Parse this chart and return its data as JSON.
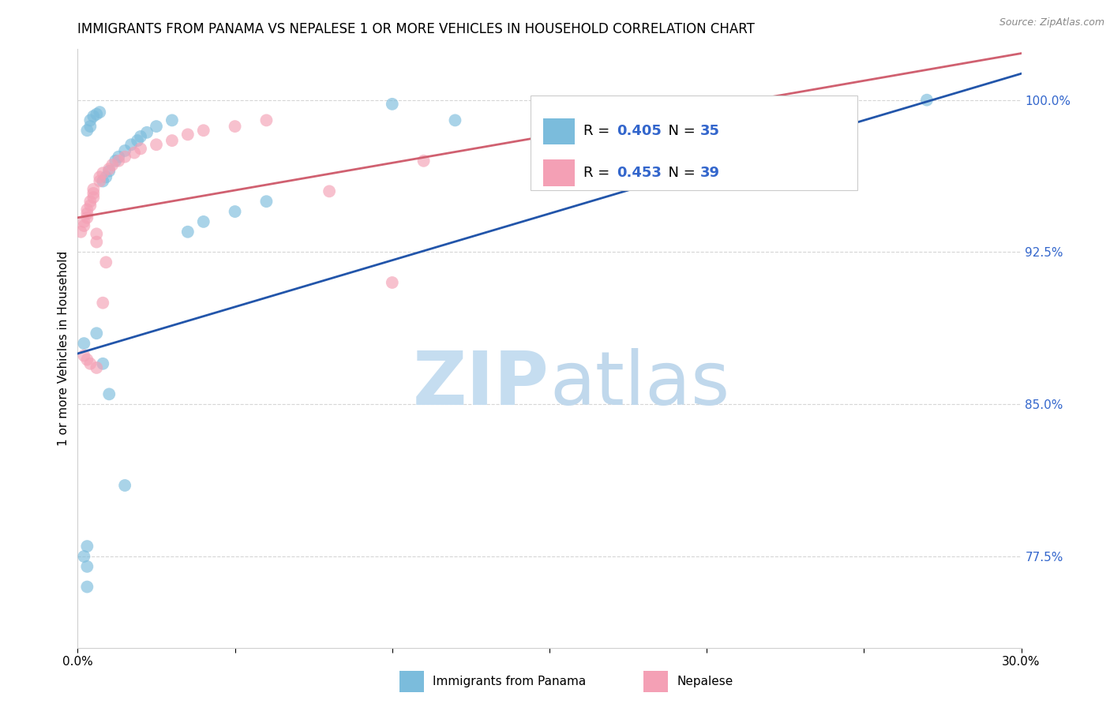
{
  "title": "IMMIGRANTS FROM PANAMA VS NEPALESE 1 OR MORE VEHICLES IN HOUSEHOLD CORRELATION CHART",
  "source": "Source: ZipAtlas.com",
  "ylabel": "1 or more Vehicles in Household",
  "ytick_labels": [
    "77.5%",
    "85.0%",
    "92.5%",
    "100.0%"
  ],
  "ytick_values": [
    0.775,
    0.85,
    0.925,
    1.0
  ],
  "xlim": [
    0.0,
    0.3
  ],
  "ylim": [
    0.73,
    1.025
  ],
  "panama_color": "#7bbcdc",
  "nepalese_color": "#f4a0b5",
  "panama_line_color": "#2255aa",
  "nepalese_line_color": "#d06070",
  "background_color": "#ffffff",
  "grid_color": "#cccccc",
  "title_fontsize": 12,
  "axis_label_fontsize": 11,
  "tick_fontsize": 11,
  "watermark_zip_color": "#c5ddf0",
  "watermark_atlas_color": "#c0d8ec",
  "panama_R": "0.405",
  "panama_N": "35",
  "nepalese_R": "0.453",
  "nepalese_N": "39",
  "legend_value_color": "#3366cc",
  "panama_x": [
    0.002,
    0.003,
    0.003,
    0.003,
    0.003,
    0.004,
    0.004,
    0.005,
    0.006,
    0.007,
    0.008,
    0.009,
    0.01,
    0.012,
    0.013,
    0.015,
    0.017,
    0.019,
    0.02,
    0.022,
    0.025,
    0.03,
    0.035,
    0.04,
    0.05,
    0.06,
    0.1,
    0.12,
    0.19,
    0.27,
    0.002,
    0.006,
    0.008,
    0.01,
    0.015
  ],
  "panama_y": [
    0.775,
    0.76,
    0.77,
    0.78,
    0.985,
    0.987,
    0.99,
    0.992,
    0.993,
    0.994,
    0.96,
    0.962,
    0.965,
    0.97,
    0.972,
    0.975,
    0.978,
    0.98,
    0.982,
    0.984,
    0.987,
    0.99,
    0.935,
    0.94,
    0.945,
    0.95,
    0.998,
    0.99,
    0.999,
    1.0,
    0.88,
    0.885,
    0.87,
    0.855,
    0.81
  ],
  "nepalese_x": [
    0.001,
    0.002,
    0.002,
    0.003,
    0.003,
    0.003,
    0.004,
    0.004,
    0.005,
    0.005,
    0.005,
    0.006,
    0.006,
    0.007,
    0.007,
    0.008,
    0.009,
    0.01,
    0.011,
    0.013,
    0.015,
    0.018,
    0.02,
    0.025,
    0.03,
    0.035,
    0.04,
    0.05,
    0.06,
    0.08,
    0.1,
    0.11,
    0.15,
    0.2,
    0.002,
    0.003,
    0.004,
    0.006,
    0.008
  ],
  "nepalese_y": [
    0.935,
    0.938,
    0.94,
    0.942,
    0.944,
    0.946,
    0.948,
    0.95,
    0.952,
    0.954,
    0.956,
    0.93,
    0.934,
    0.96,
    0.962,
    0.964,
    0.92,
    0.966,
    0.968,
    0.97,
    0.972,
    0.974,
    0.976,
    0.978,
    0.98,
    0.983,
    0.985,
    0.987,
    0.99,
    0.955,
    0.91,
    0.97,
    0.96,
    0.975,
    0.874,
    0.872,
    0.87,
    0.868,
    0.9
  ]
}
